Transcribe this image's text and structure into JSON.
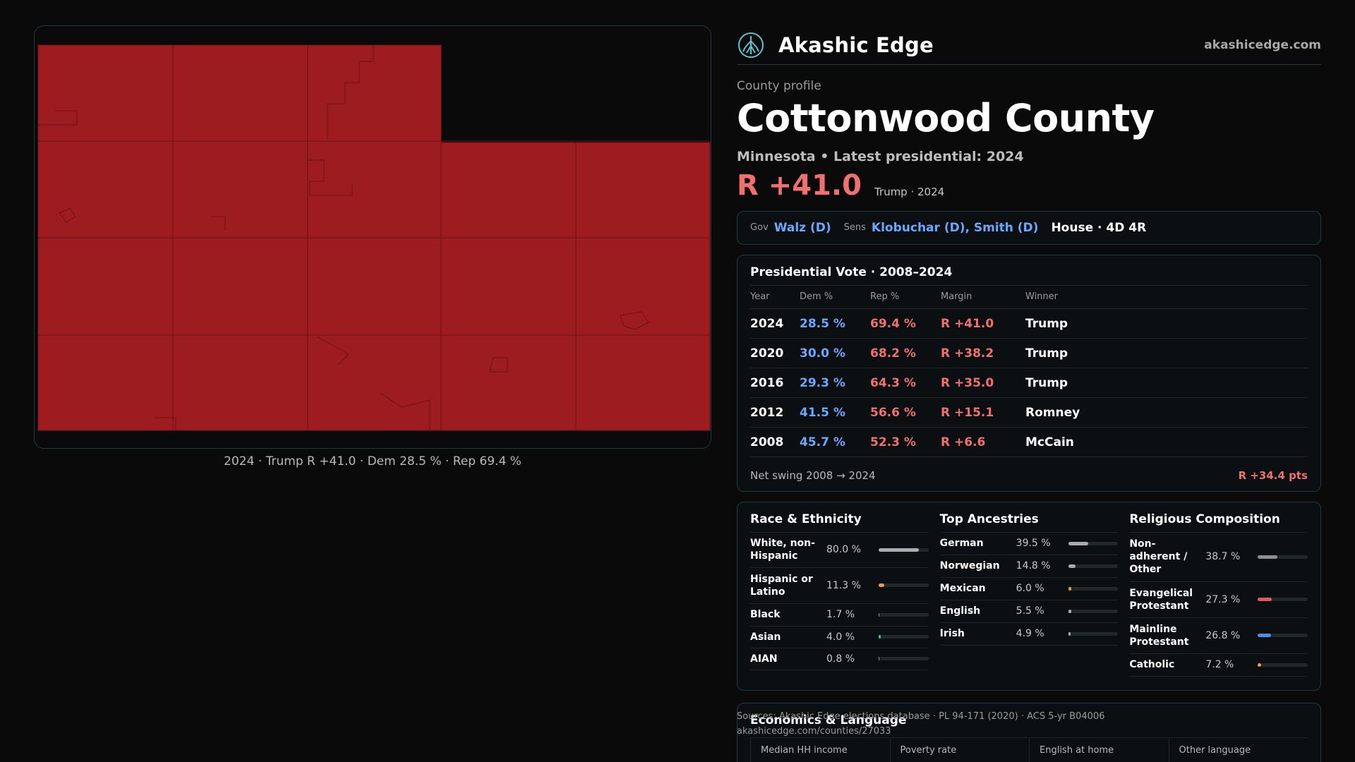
{
  "brand": {
    "name": "Akashic Edge",
    "site": "akashicedge.com",
    "logo_icon": "akashic-tree-icon"
  },
  "map": {
    "fill_color": "#9c1c20",
    "caption": "2024 · Trump R +41.0 · Dem 28.5 % · Rep 69.4 %"
  },
  "profile": {
    "eyebrow": "County profile",
    "county": "Cottonwood County",
    "subtitle": "Minnesota • Latest presidential: 2024",
    "margin": "R +41.0",
    "margin_note": "Trump · 2024"
  },
  "officials": {
    "gov_label": "Gov",
    "gov": "Walz (D)",
    "sens_label": "Sens",
    "sens": "Klobuchar (D), Smith (D)",
    "house": "House · 4D 4R"
  },
  "presidential": {
    "title": "Presidential Vote · 2008–2024",
    "headers": [
      "Year",
      "Dem %",
      "Rep %",
      "Margin",
      "Winner"
    ],
    "rows": [
      {
        "year": "2024",
        "dem": "28.5 %",
        "rep": "69.4 %",
        "margin": "R +41.0",
        "winner": "Trump"
      },
      {
        "year": "2020",
        "dem": "30.0 %",
        "rep": "68.2 %",
        "margin": "R +38.2",
        "winner": "Trump"
      },
      {
        "year": "2016",
        "dem": "29.3 %",
        "rep": "64.3 %",
        "margin": "R +35.0",
        "winner": "Trump"
      },
      {
        "year": "2012",
        "dem": "41.5 %",
        "rep": "56.6 %",
        "margin": "R +15.1",
        "winner": "Romney"
      },
      {
        "year": "2008",
        "dem": "45.7 %",
        "rep": "52.3 %",
        "margin": "R +6.6",
        "winner": "McCain"
      }
    ],
    "swing_label": "Net swing 2008 → 2024",
    "swing_value": "R +34.4 pts"
  },
  "race": {
    "title": "Race & Ethnicity",
    "rows": [
      {
        "label": "White, non-Hispanic",
        "value": "80.0 %",
        "pct": 80.0,
        "color": "#a9adb2"
      },
      {
        "label": "Hispanic or Latino",
        "value": "11.3 %",
        "pct": 11.3,
        "color": "#e8a23a"
      },
      {
        "label": "Black",
        "value": "1.7 %",
        "pct": 1.7,
        "color": "#8a8f94"
      },
      {
        "label": "Asian",
        "value": "4.0 %",
        "pct": 4.0,
        "color": "#3fbf7f"
      },
      {
        "label": "AIAN",
        "value": "0.8 %",
        "pct": 0.8,
        "color": "#8a8f94"
      }
    ]
  },
  "ancestry": {
    "title": "Top Ancestries",
    "rows": [
      {
        "label": "German",
        "value": "39.5 %",
        "pct": 39.5,
        "color": "#a9adb2"
      },
      {
        "label": "Norwegian",
        "value": "14.8 %",
        "pct": 14.8,
        "color": "#a9adb2"
      },
      {
        "label": "Mexican",
        "value": "6.0 %",
        "pct": 6.0,
        "color": "#e8a23a"
      },
      {
        "label": "English",
        "value": "5.5 %",
        "pct": 5.5,
        "color": "#a9adb2"
      },
      {
        "label": "Irish",
        "value": "4.9 %",
        "pct": 4.9,
        "color": "#a9adb2"
      }
    ]
  },
  "religion": {
    "title": "Religious Composition",
    "rows": [
      {
        "label": "Non-adherent / Other",
        "value": "38.7 %",
        "pct": 38.7,
        "color": "#8a8f94"
      },
      {
        "label": "Evangelical Protestant",
        "value": "27.3 %",
        "pct": 27.3,
        "color": "#e05a5a"
      },
      {
        "label": "Mainline Protestant",
        "value": "26.8 %",
        "pct": 26.8,
        "color": "#4f8de0"
      },
      {
        "label": "Catholic",
        "value": "7.2 %",
        "pct": 7.2,
        "color": "#e8a23a"
      }
    ]
  },
  "economics": {
    "title": "Economics & Language",
    "headers": [
      "Median HH income",
      "Poverty rate",
      "English at home",
      "Other language"
    ]
  },
  "sources": {
    "line1": "Sources: Akashic Edge elections database · PL 94-171 (2020) · ACS 5-yr B04006",
    "line2": "akashicedge.com/counties/27033"
  }
}
